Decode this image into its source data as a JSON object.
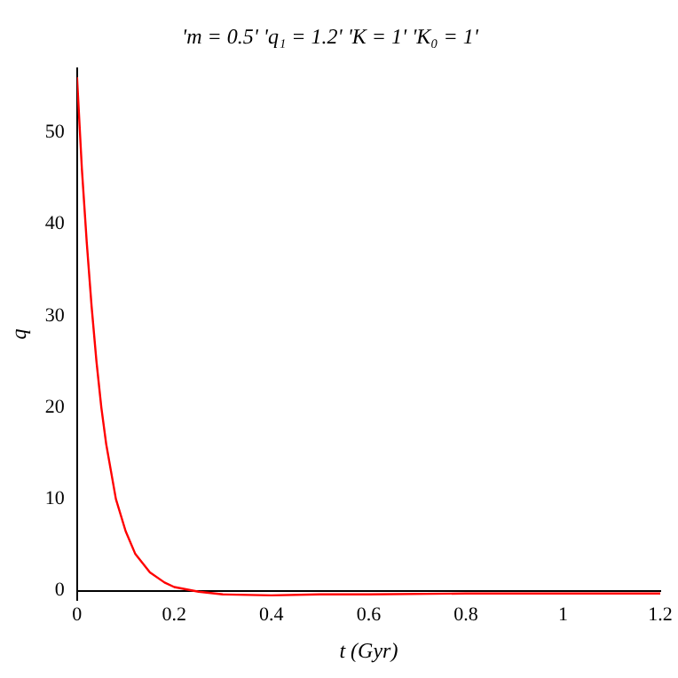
{
  "chart_data": {
    "type": "line",
    "title": "'m = 0.5' 'q₁ = 1.2' 'K = 1' 'K₀ = 1'",
    "xlabel": "t (Gyr)",
    "ylabel": "q",
    "series": [
      {
        "color": "#ff0000",
        "x": [
          0,
          0.01,
          0.02,
          0.03,
          0.04,
          0.05,
          0.06,
          0.08,
          0.1,
          0.12,
          0.15,
          0.18,
          0.2,
          0.25,
          0.3,
          0.4,
          0.5,
          0.6,
          0.8,
          1.0,
          1.2
        ],
        "values": [
          56,
          46,
          38,
          31,
          25,
          20,
          16,
          10,
          6.5,
          4,
          2,
          0.9,
          0.4,
          -0.1,
          -0.4,
          -0.5,
          -0.4,
          -0.4,
          -0.3,
          -0.3,
          -0.3
        ]
      }
    ],
    "xlim": [
      0,
      1.2
    ],
    "xticks": [
      0,
      0.2,
      0.4,
      0.6,
      0.8,
      1,
      1.2
    ],
    "ylim": [
      -1,
      57
    ],
    "yticks": [
      0,
      10,
      20,
      30,
      40,
      50
    ],
    "grid": false,
    "legend": false,
    "marker": "none",
    "line_style": "solid"
  }
}
